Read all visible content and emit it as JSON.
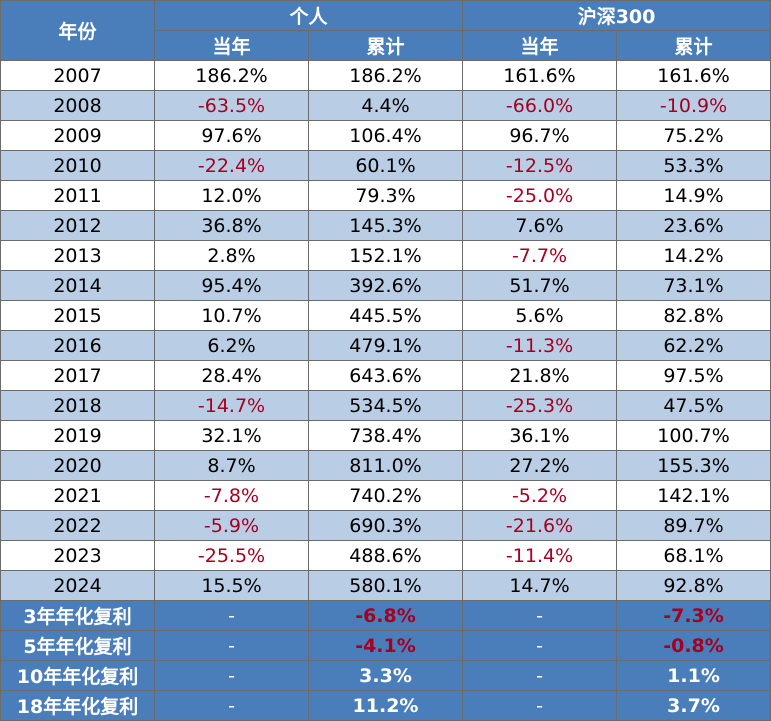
{
  "header": {
    "year_label": "年份",
    "group_personal": "个人",
    "group_index": "沪深300",
    "sub_annual": "当年",
    "sub_cumulative": "累计"
  },
  "rows": [
    {
      "year": "2007",
      "p_annual": "186.2%",
      "p_cum": "186.2%",
      "i_annual": "161.6%",
      "i_cum": "161.6%"
    },
    {
      "year": "2008",
      "p_annual": "-63.5%",
      "p_cum": "4.4%",
      "i_annual": "-66.0%",
      "i_cum": "-10.9%"
    },
    {
      "year": "2009",
      "p_annual": "97.6%",
      "p_cum": "106.4%",
      "i_annual": "96.7%",
      "i_cum": "75.2%"
    },
    {
      "year": "2010",
      "p_annual": "-22.4%",
      "p_cum": "60.1%",
      "i_annual": "-12.5%",
      "i_cum": "53.3%"
    },
    {
      "year": "2011",
      "p_annual": "12.0%",
      "p_cum": "79.3%",
      "i_annual": "-25.0%",
      "i_cum": "14.9%"
    },
    {
      "year": "2012",
      "p_annual": "36.8%",
      "p_cum": "145.3%",
      "i_annual": "7.6%",
      "i_cum": "23.6%"
    },
    {
      "year": "2013",
      "p_annual": "2.8%",
      "p_cum": "152.1%",
      "i_annual": "-7.7%",
      "i_cum": "14.2%"
    },
    {
      "year": "2014",
      "p_annual": "95.4%",
      "p_cum": "392.6%",
      "i_annual": "51.7%",
      "i_cum": "73.1%"
    },
    {
      "year": "2015",
      "p_annual": "10.7%",
      "p_cum": "445.5%",
      "i_annual": "5.6%",
      "i_cum": "82.8%"
    },
    {
      "year": "2016",
      "p_annual": "6.2%",
      "p_cum": "479.1%",
      "i_annual": "-11.3%",
      "i_cum": "62.2%"
    },
    {
      "year": "2017",
      "p_annual": "28.4%",
      "p_cum": "643.6%",
      "i_annual": "21.8%",
      "i_cum": "97.5%"
    },
    {
      "year": "2018",
      "p_annual": "-14.7%",
      "p_cum": "534.5%",
      "i_annual": "-25.3%",
      "i_cum": "47.5%"
    },
    {
      "year": "2019",
      "p_annual": "32.1%",
      "p_cum": "738.4%",
      "i_annual": "36.1%",
      "i_cum": "100.7%"
    },
    {
      "year": "2020",
      "p_annual": "8.7%",
      "p_cum": "811.0%",
      "i_annual": "27.2%",
      "i_cum": "155.3%"
    },
    {
      "year": "2021",
      "p_annual": "-7.8%",
      "p_cum": "740.2%",
      "i_annual": "-5.2%",
      "i_cum": "142.1%"
    },
    {
      "year": "2022",
      "p_annual": "-5.9%",
      "p_cum": "690.3%",
      "i_annual": "-21.6%",
      "i_cum": "89.7%"
    },
    {
      "year": "2023",
      "p_annual": "-25.5%",
      "p_cum": "488.6%",
      "i_annual": "-11.4%",
      "i_cum": "68.1%"
    },
    {
      "year": "2024",
      "p_annual": "15.5%",
      "p_cum": "580.1%",
      "i_annual": "14.7%",
      "i_cum": "92.8%"
    }
  ],
  "summary": [
    {
      "label": "3年年化复利",
      "p_annual": "-",
      "p_cum": "-6.8%",
      "i_annual": "-",
      "i_cum": "-7.3%"
    },
    {
      "label": "5年年化复利",
      "p_annual": "-",
      "p_cum": "-4.1%",
      "i_annual": "-",
      "i_cum": "-0.8%"
    },
    {
      "label": "10年年化复利",
      "p_annual": "-",
      "p_cum": "3.3%",
      "i_annual": "-",
      "i_cum": "1.1%"
    },
    {
      "label": "18年年化复利",
      "p_annual": "-",
      "p_cum": "11.2%",
      "i_annual": "-",
      "i_cum": "3.7%"
    }
  ],
  "colors": {
    "header_bg": "#4a7ebb",
    "stripe": "#b9cde5",
    "negative": "#a50021"
  }
}
